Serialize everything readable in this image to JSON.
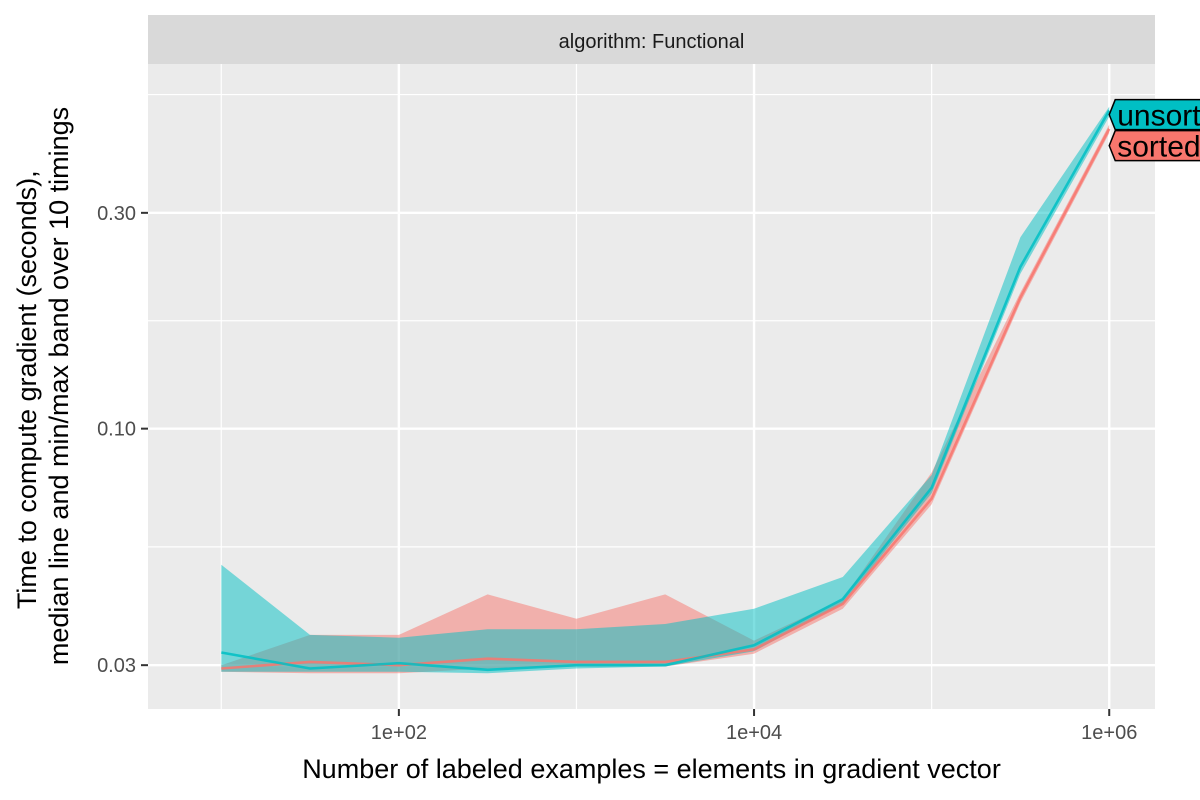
{
  "chart_data": {
    "type": "line",
    "facet_label": "algorithm: Functional",
    "xlabel": "Number of labeled examples = elements in gradient vector",
    "ylabel_lines": [
      "Time to compute gradient (seconds),",
      "median line and min/max band over 10 timings"
    ],
    "x_scale": "log10",
    "y_scale": "log10",
    "xlim": [
      7,
      1000000
    ],
    "ylim": [
      0.024,
      0.64
    ],
    "x_ticks": [
      {
        "value": 100,
        "label": "1e+02"
      },
      {
        "value": 10000,
        "label": "1e+04"
      },
      {
        "value": 1000000,
        "label": "1e+06"
      }
    ],
    "y_ticks": [
      {
        "value": 0.03,
        "label": "0.03"
      },
      {
        "value": 0.1,
        "label": "0.10"
      },
      {
        "value": 0.3,
        "label": "0.30"
      }
    ],
    "x": [
      10,
      31.6,
      100,
      316,
      1000,
      3162,
      10000,
      31623,
      100000,
      316228,
      1000000
    ],
    "series": [
      {
        "name": "sorted",
        "color": "#F8766D",
        "median": [
          0.0295,
          0.0305,
          0.03,
          0.031,
          0.0305,
          0.0305,
          0.0325,
          0.041,
          0.07,
          0.195,
          0.46
        ],
        "min": [
          0.029,
          0.0288,
          0.0288,
          0.0295,
          0.0298,
          0.0298,
          0.0318,
          0.04,
          0.068,
          0.19,
          0.45
        ],
        "max": [
          0.03,
          0.035,
          0.035,
          0.043,
          0.038,
          0.043,
          0.034,
          0.042,
          0.08,
          0.2,
          0.47
        ]
      },
      {
        "name": "unsorted",
        "color": "#00BFC4",
        "median": [
          0.032,
          0.0295,
          0.0303,
          0.0293,
          0.03,
          0.03,
          0.0332,
          0.042,
          0.074,
          0.228,
          0.505
        ],
        "min": [
          0.029,
          0.029,
          0.029,
          0.0288,
          0.0295,
          0.0298,
          0.0322,
          0.041,
          0.072,
          0.22,
          0.49
        ],
        "max": [
          0.05,
          0.035,
          0.0345,
          0.036,
          0.036,
          0.037,
          0.04,
          0.047,
          0.079,
          0.265,
          0.515
        ]
      }
    ],
    "direct_labels": [
      "unsorted",
      "sorted"
    ],
    "grid": true,
    "legend": "none"
  }
}
